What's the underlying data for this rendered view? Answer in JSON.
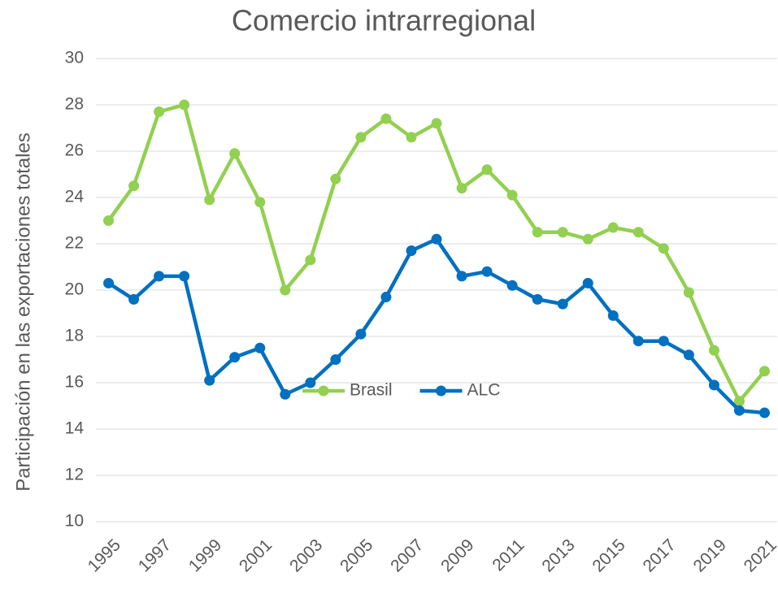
{
  "chart_data": {
    "type": "line",
    "title": "Comercio intrarregional",
    "y_label": "Participación  en las exportaciones totales",
    "categories": [
      "1995",
      null,
      "1997",
      null,
      "1999",
      null,
      "2001",
      null,
      "2003",
      null,
      "2005",
      null,
      "2007",
      null,
      "2009",
      null,
      "2011",
      null,
      "2013",
      null,
      "2015",
      null,
      "2017",
      null,
      "2019",
      null,
      "2021"
    ],
    "series": [
      {
        "name": "Brasil",
        "color": "#92d050",
        "values": [
          23.0,
          24.5,
          27.7,
          28.0,
          23.9,
          25.9,
          23.8,
          20.0,
          21.3,
          24.8,
          26.6,
          27.4,
          26.6,
          27.2,
          24.4,
          25.2,
          24.1,
          22.5,
          22.5,
          22.2,
          22.7,
          22.5,
          21.8,
          19.9,
          17.4,
          15.2,
          16.5
        ]
      },
      {
        "name": "ALC",
        "color": "#0070c0",
        "values": [
          20.3,
          19.6,
          20.6,
          20.6,
          16.1,
          17.1,
          17.5,
          15.5,
          16.0,
          17.0,
          18.1,
          19.7,
          21.7,
          22.2,
          20.6,
          20.8,
          20.2,
          19.6,
          19.4,
          20.3,
          18.9,
          17.8,
          17.8,
          17.2,
          15.9,
          14.8,
          14.7
        ]
      }
    ],
    "ylim": [
      10,
      30
    ],
    "yticks": [
      10,
      12,
      14,
      16,
      18,
      20,
      22,
      24,
      26,
      28,
      30
    ],
    "grid": true,
    "legend_position": "center"
  }
}
